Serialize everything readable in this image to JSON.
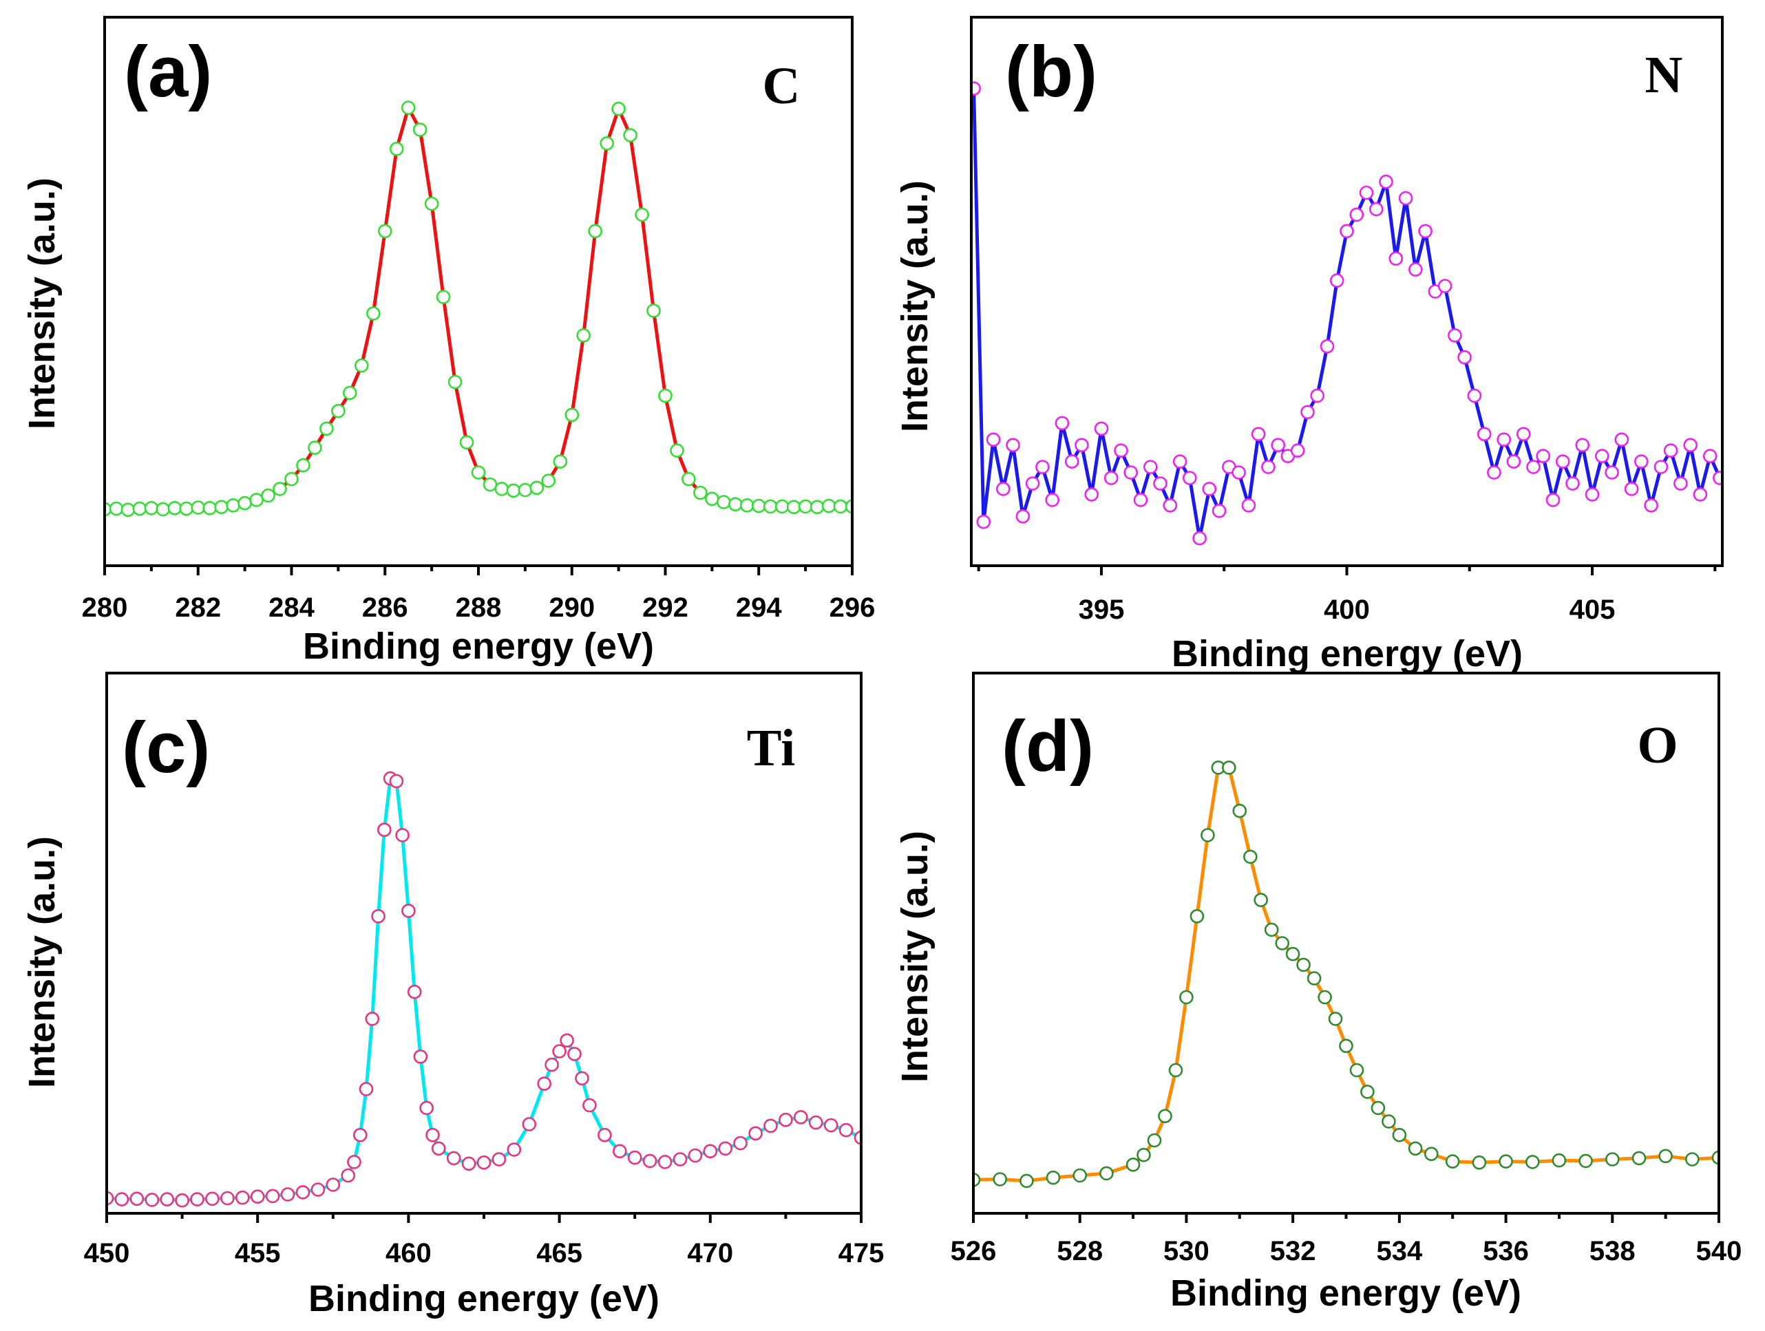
{
  "chart_data": [
    {
      "type": "line",
      "panel_label": "(a)",
      "element_label": "C",
      "xlabel": "Binding energy (eV)",
      "ylabel": "Intensity (a.u.)",
      "xlim": [
        280,
        296
      ],
      "ylim": [
        0,
        100
      ],
      "xticks": [
        280,
        282,
        284,
        286,
        288,
        290,
        292,
        294,
        296
      ],
      "line_color": "#ee1111",
      "marker_color": "#33dd33",
      "series": [
        {
          "name": "C",
          "x": [
            280,
            280.25,
            280.5,
            280.75,
            281,
            281.25,
            281.5,
            281.75,
            282,
            282.25,
            282.5,
            282.75,
            283,
            283.25,
            283.5,
            283.75,
            284,
            284.25,
            284.5,
            284.75,
            285,
            285.25,
            285.5,
            285.75,
            286,
            286.25,
            286.5,
            286.75,
            287,
            287.25,
            287.5,
            287.75,
            288,
            288.25,
            288.5,
            288.75,
            289,
            289.25,
            289.5,
            289.75,
            290,
            290.25,
            290.5,
            290.75,
            291,
            291.25,
            291.5,
            291.75,
            292,
            292.25,
            292.5,
            292.75,
            293,
            293.25,
            293.5,
            293.75,
            294,
            294.25,
            294.5,
            294.75,
            295,
            295.25,
            295.5,
            295.75,
            296
          ],
          "y": [
            10.3,
            10.4,
            10.2,
            10.4,
            10.5,
            10.3,
            10.5,
            10.4,
            10.6,
            10.5,
            10.7,
            11.0,
            11.4,
            12.0,
            12.8,
            14.0,
            15.8,
            18.3,
            21.5,
            25.0,
            28.2,
            31.5,
            36.5,
            46.0,
            61.0,
            76.0,
            83.5,
            79.5,
            66.0,
            49.0,
            33.5,
            22.5,
            17.0,
            14.8,
            14.0,
            13.7,
            13.8,
            14.2,
            15.5,
            19.0,
            27.5,
            42.0,
            61.0,
            77.0,
            83.3,
            78.5,
            64.0,
            46.5,
            31.0,
            21.0,
            15.8,
            13.3,
            12.2,
            11.6,
            11.2,
            11.0,
            10.9,
            10.8,
            10.8,
            10.7,
            10.8,
            10.7,
            10.9,
            10.8,
            10.8
          ]
        }
      ]
    },
    {
      "type": "line",
      "panel_label": "(b)",
      "element_label": "N",
      "xlabel": "Binding energy (eV)",
      "ylabel": "Intensity (a.u.)",
      "xlim": [
        392.35,
        407.65
      ],
      "ylim": [
        0,
        100
      ],
      "xticks": [
        395,
        400,
        405
      ],
      "line_color": "#1a1aee",
      "marker_color": "#ee22ee",
      "series": [
        {
          "name": "N",
          "x": [
            392.4,
            392.6,
            392.8,
            393,
            393.2,
            393.4,
            393.6,
            393.8,
            394,
            394.2,
            394.4,
            394.6,
            394.8,
            395,
            395.2,
            395.4,
            395.6,
            395.8,
            396,
            396.2,
            396.4,
            396.6,
            396.8,
            397,
            397.2,
            397.4,
            397.6,
            397.8,
            398,
            398.2,
            398.4,
            398.6,
            398.8,
            399,
            399.2,
            399.4,
            399.6,
            399.8,
            400,
            400.2,
            400.4,
            400.6,
            400.8,
            401,
            401.2,
            401.4,
            401.6,
            401.8,
            402,
            402.2,
            402.4,
            402.6,
            402.8,
            403,
            403.2,
            403.4,
            403.6,
            403.8,
            404,
            404.2,
            404.4,
            404.6,
            404.8,
            405,
            405.2,
            405.4,
            405.6,
            405.8,
            406,
            406.2,
            406.4,
            406.6,
            406.8,
            407,
            407.2,
            407.4,
            407.6
          ],
          "y": [
            87,
            8,
            23,
            14,
            22,
            9,
            15,
            18,
            12,
            26,
            19,
            22,
            13,
            25,
            16,
            21,
            17,
            12,
            18,
            15,
            11,
            19,
            16,
            5,
            14,
            10,
            18,
            17,
            11,
            24,
            18,
            22,
            20,
            21,
            28,
            31,
            40,
            52,
            61,
            64,
            68,
            65,
            70,
            56,
            67,
            54,
            61,
            50,
            51,
            42,
            38,
            31,
            24,
            17,
            23,
            19,
            24,
            18,
            20,
            12,
            19,
            15,
            22,
            13,
            20,
            17,
            23,
            14,
            19,
            11,
            18,
            21,
            15,
            22,
            13,
            20,
            16
          ]
        }
      ]
    },
    {
      "type": "line",
      "panel_label": "(c)",
      "element_label": "Ti",
      "xlabel": "Binding energy (eV)",
      "ylabel": "Intensity (a.u.)",
      "xlim": [
        450,
        475
      ],
      "ylim": [
        0,
        100
      ],
      "xticks": [
        450,
        455,
        460,
        465,
        470,
        475
      ],
      "line_color": "#00e8f0",
      "marker_color": "#e8337f",
      "series": [
        {
          "name": "Ti",
          "x": [
            450,
            450.5,
            451,
            451.5,
            452,
            452.5,
            453,
            453.5,
            454,
            454.5,
            455,
            455.5,
            456,
            456.5,
            457,
            457.5,
            458,
            458.2,
            458.4,
            458.6,
            458.8,
            459,
            459.2,
            459.4,
            459.6,
            459.8,
            460,
            460.2,
            460.4,
            460.6,
            460.8,
            461,
            461.5,
            462,
            462.5,
            463,
            463.5,
            464,
            464.5,
            464.75,
            465,
            465.25,
            465.5,
            465.75,
            466,
            466.5,
            467,
            467.5,
            468,
            468.5,
            469,
            469.5,
            470,
            470.5,
            471,
            471.5,
            472,
            472.5,
            473,
            473.5,
            474,
            474.5,
            475
          ],
          "y": [
            2.8,
            2.6,
            2.7,
            2.5,
            2.6,
            2.4,
            2.6,
            2.7,
            2.8,
            2.9,
            3.1,
            3.2,
            3.5,
            3.9,
            4.4,
            5.3,
            7.0,
            9.5,
            14.5,
            23,
            36,
            55,
            71,
            80.5,
            80,
            70,
            56,
            41,
            29,
            19.5,
            14.5,
            12,
            10.2,
            9.2,
            9.4,
            10.0,
            11.8,
            16.5,
            24.0,
            27.5,
            30,
            32,
            29.5,
            25,
            20,
            14.5,
            11.5,
            10.3,
            9.7,
            9.5,
            10.0,
            10.7,
            11.5,
            12.0,
            13.0,
            14.8,
            16.2,
            17.3,
            17.8,
            16.8,
            16.3,
            15.4,
            14.0
          ]
        }
      ]
    },
    {
      "type": "line",
      "panel_label": "(d)",
      "element_label": "O",
      "xlabel": "Binding energy (eV)",
      "ylabel": "Intensity (a.u.)",
      "xlim": [
        526,
        540
      ],
      "ylim": [
        0,
        100
      ],
      "xticks": [
        526,
        528,
        530,
        532,
        534,
        536,
        538,
        540
      ],
      "line_color": "#ff8c00",
      "marker_color": "#2e8b2e",
      "series": [
        {
          "name": "O",
          "x": [
            526,
            526.5,
            527,
            527.5,
            528,
            528.5,
            529,
            529.2,
            529.4,
            529.6,
            529.8,
            530,
            530.2,
            530.4,
            530.6,
            530.8,
            531,
            531.2,
            531.4,
            531.6,
            531.8,
            532,
            532.2,
            532.4,
            532.6,
            532.8,
            533,
            533.2,
            533.4,
            533.6,
            533.8,
            534,
            534.3,
            534.6,
            535,
            535.5,
            536,
            536.5,
            537,
            537.5,
            538,
            538.5,
            539,
            539.5,
            540
          ],
          "y": [
            6.2,
            6.3,
            6.0,
            6.6,
            7.0,
            7.4,
            9.0,
            10.8,
            13.5,
            18.0,
            26.5,
            40.0,
            55.0,
            70.0,
            82.5,
            82.5,
            74.5,
            66.0,
            58.0,
            52.5,
            50.0,
            48.0,
            46.0,
            43.5,
            40.0,
            36.0,
            31.0,
            26.5,
            22.5,
            19.5,
            17.0,
            14.5,
            12.0,
            11.0,
            9.6,
            9.4,
            9.6,
            9.5,
            9.8,
            9.7,
            10.0,
            10.2,
            10.6,
            10.0,
            10.3
          ]
        }
      ]
    }
  ]
}
